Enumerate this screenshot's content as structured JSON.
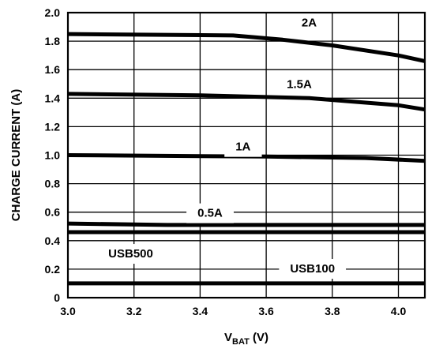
{
  "chart_data": {
    "type": "line",
    "title": "",
    "xlabel_main": "V",
    "xlabel_sub": "BAT",
    "xlabel_unit": " (V)",
    "ylabel": "CHARGE CURRENT (A)",
    "xlim": [
      3.0,
      4.08
    ],
    "ylim": [
      0,
      2.0
    ],
    "grid": true,
    "x_ticks": [
      3.0,
      3.2,
      3.4,
      3.6,
      3.8,
      4.0
    ],
    "x_tick_labels": [
      "3.0",
      "3.2",
      "3.4",
      "3.6",
      "3.8",
      "4.0"
    ],
    "y_ticks": [
      0,
      0.2,
      0.4,
      0.6,
      0.8,
      1.0,
      1.2,
      1.4,
      1.6,
      1.8,
      2.0
    ],
    "y_tick_labels": [
      "0",
      "0.2",
      "0.4",
      "0.6",
      "0.8",
      "1.0",
      "1.2",
      "1.4",
      "1.6",
      "1.8",
      "2.0"
    ],
    "series": [
      {
        "name": "2A",
        "label_x": 3.73,
        "label_y": 1.93,
        "x": [
          3.0,
          3.5,
          3.65,
          3.8,
          4.0,
          4.08
        ],
        "y": [
          1.85,
          1.84,
          1.81,
          1.77,
          1.7,
          1.66
        ]
      },
      {
        "name": "1.5A",
        "label_x": 3.7,
        "label_y": 1.5,
        "x": [
          3.0,
          3.4,
          3.73,
          4.0,
          4.08
        ],
        "y": [
          1.43,
          1.42,
          1.4,
          1.35,
          1.32
        ]
      },
      {
        "name": "1A",
        "label_x": 3.53,
        "label_y": 1.06,
        "x": [
          3.0,
          3.6,
          3.9,
          4.08
        ],
        "y": [
          1.0,
          0.99,
          0.98,
          0.96
        ]
      },
      {
        "name": "0.5A",
        "label_x": 3.43,
        "label_y": 0.595,
        "x": [
          3.0,
          3.3,
          4.08
        ],
        "y": [
          0.52,
          0.51,
          0.51
        ]
      },
      {
        "name": "USB500",
        "label_x": 3.19,
        "label_y": 0.31,
        "x": [
          3.0,
          4.08
        ],
        "y": [
          0.46,
          0.46
        ]
      },
      {
        "name": "USB100",
        "label_x": 3.74,
        "label_y": 0.205,
        "x": [
          3.0,
          4.08
        ],
        "y": [
          0.1,
          0.1
        ]
      }
    ]
  }
}
